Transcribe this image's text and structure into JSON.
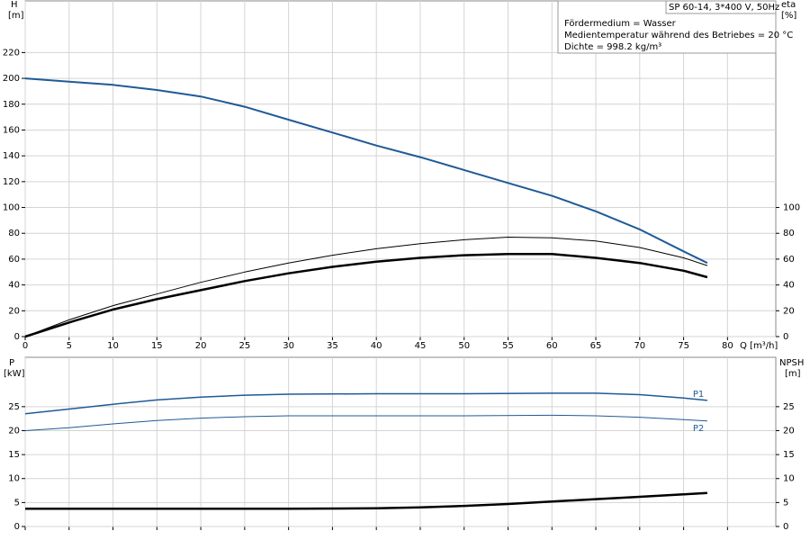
{
  "chart_data": [
    {
      "type": "line",
      "ylabel": "H",
      "yunit": "[m]",
      "y2label": "eta",
      "y2unit": "[%]",
      "xlabel": "Q [m³/h]",
      "info_title": "SP 60-14, 3*400 V, 50Hz",
      "info_lines": [
        "Fördermedium = Wasser",
        "Medientemperatur während des Betriebes = 20 °C",
        "Dichte = 998.2 kg/m³"
      ],
      "xlim": [
        0,
        85.5
      ],
      "xticks": [
        0,
        5,
        10,
        15,
        20,
        25,
        30,
        35,
        40,
        45,
        50,
        55,
        60,
        65,
        70,
        75,
        80
      ],
      "ylim": [
        0,
        260
      ],
      "yticks": [
        0,
        20,
        40,
        60,
        80,
        100,
        120,
        140,
        160,
        180,
        200,
        220
      ],
      "y2lim": [
        0,
        260
      ],
      "y2ticks": [
        0,
        20,
        40,
        60,
        80,
        100
      ],
      "grid": true,
      "series": [
        {
          "color": "#1f5a96",
          "x": [
            0,
            5,
            10,
            15,
            20,
            25,
            30,
            35,
            40,
            45,
            50,
            55,
            60,
            65,
            70,
            75,
            77.7
          ],
          "values": [
            200,
            197.5,
            195,
            191,
            186,
            178,
            168,
            158,
            148,
            139,
            129,
            119,
            109,
            97,
            83,
            66,
            57
          ]
        },
        {
          "color": "#000000",
          "axis": "y2",
          "x": [
            0,
            5,
            10,
            15,
            20,
            25,
            30,
            35,
            40,
            45,
            50,
            55,
            60,
            65,
            70,
            75,
            77.7
          ],
          "values": [
            0,
            13,
            24,
            33,
            42,
            50,
            57,
            63,
            68,
            72,
            75,
            77,
            76.5,
            74,
            69,
            61,
            55
          ]
        },
        {
          "color": "#000000",
          "axis": "y2",
          "x": [
            0,
            5.5,
            10,
            15,
            20,
            25,
            30,
            35,
            40,
            45,
            50,
            55,
            60,
            65,
            70,
            75,
            77.7
          ],
          "values": [
            0,
            12,
            21,
            29,
            36,
            43,
            49,
            54,
            58,
            61,
            63,
            64,
            64,
            61,
            57,
            51,
            46
          ]
        }
      ]
    },
    {
      "type": "line",
      "ylabel": "P",
      "yunit": "[kW]",
      "y2label": "NPSH",
      "y2unit": "[m]",
      "xlim": [
        0,
        85.5
      ],
      "xticks": [
        0,
        5,
        10,
        15,
        20,
        25,
        30,
        35,
        40,
        45,
        50,
        55,
        60,
        65,
        70,
        75,
        80
      ],
      "ylim": [
        0,
        35.3
      ],
      "yticks": [
        0,
        5,
        10,
        15,
        20,
        25
      ],
      "y2lim": [
        0,
        35.3
      ],
      "y2ticks": [
        0,
        5,
        10,
        15,
        20,
        25
      ],
      "grid": true,
      "series": [
        {
          "name": "P1",
          "color": "#1f5a96",
          "x": [
            0,
            5,
            10,
            15,
            20,
            25,
            30,
            40,
            50,
            60,
            65,
            70,
            75,
            77.7
          ],
          "values": [
            23.5,
            24.5,
            25.5,
            26.4,
            27,
            27.4,
            27.6,
            27.7,
            27.7,
            27.8,
            27.8,
            27.5,
            26.8,
            26.3
          ]
        },
        {
          "name": "P2",
          "color": "#1f5a96",
          "x": [
            0,
            5,
            10,
            15,
            20,
            25,
            30,
            40,
            50,
            60,
            65,
            70,
            75,
            77.7
          ],
          "values": [
            20,
            20.6,
            21.4,
            22.1,
            22.6,
            22.9,
            23.1,
            23.1,
            23.1,
            23.2,
            23.1,
            22.8,
            22.3,
            22
          ]
        },
        {
          "color": "#000000",
          "axis": "y2",
          "x": [
            0,
            5.5,
            10,
            20,
            30,
            40,
            45,
            50,
            55,
            60,
            65,
            70,
            75,
            77.7
          ],
          "values": [
            3.7,
            3.7,
            3.7,
            3.7,
            3.7,
            3.8,
            4,
            4.3,
            4.7,
            5.2,
            5.7,
            6.2,
            6.7,
            7
          ]
        }
      ]
    }
  ]
}
